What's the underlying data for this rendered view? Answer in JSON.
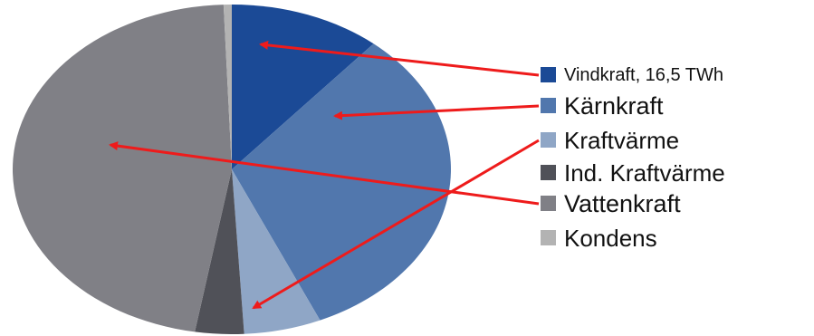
{
  "chart_data": {
    "type": "pie",
    "title": "",
    "legend_position": "right",
    "slices": [
      {
        "label": "Vindkraft, 16,5 TWh",
        "value": 11.2,
        "color": "#1b4a96"
      },
      {
        "label": "Kärnkraft",
        "value": 32.2,
        "color": "#5177ad"
      },
      {
        "label": "Kraftvärme",
        "value": 5.7,
        "color": "#8fa6c6"
      },
      {
        "label": "Ind. Kraftvärme",
        "value": 3.6,
        "color": "#505158"
      },
      {
        "label": "Vattenkraft",
        "value": 46.7,
        "color": "#808086"
      },
      {
        "label": "Kondens",
        "value": 0.6,
        "color": "#b3b3b3"
      }
    ],
    "annotations": {
      "arrows": "red arrows linking legend entries to their slices",
      "arrow_color": "#ee1b1b"
    }
  }
}
